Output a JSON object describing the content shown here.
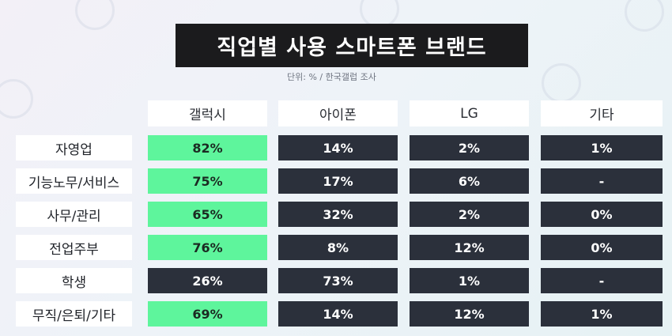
{
  "title": "직업별 사용 스마트폰 브랜드",
  "subtitle": "단위: % / 한국갤럽 조사",
  "table": {
    "columns": [
      "갤럭시",
      "아이폰",
      "LG",
      "기타"
    ],
    "rows": [
      {
        "label": "자영업",
        "cells": [
          "82%",
          "14%",
          "2%",
          "1%"
        ]
      },
      {
        "label": "기능노무/서비스",
        "cells": [
          "75%",
          "17%",
          "6%",
          "-"
        ]
      },
      {
        "label": "사무/관리",
        "cells": [
          "65%",
          "32%",
          "2%",
          "0%"
        ]
      },
      {
        "label": "전업주부",
        "cells": [
          "76%",
          "8%",
          "12%",
          "0%"
        ]
      },
      {
        "label": "학생",
        "cells": [
          "26%",
          "73%",
          "1%",
          "-"
        ]
      },
      {
        "label": "무직/은퇴/기타",
        "cells": [
          "69%",
          "14%",
          "12%",
          "1%"
        ]
      }
    ]
  }
}
